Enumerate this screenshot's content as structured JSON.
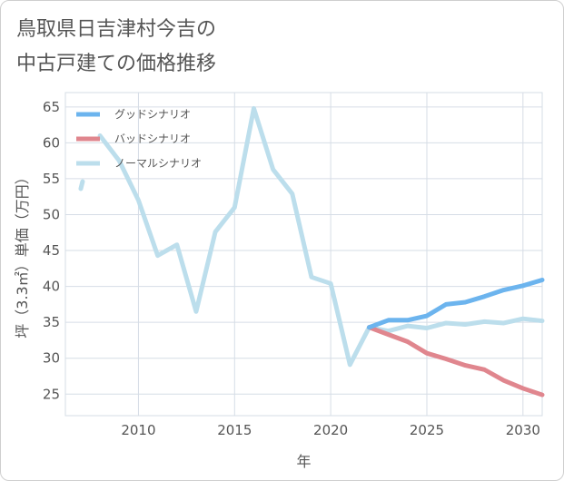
{
  "chart_data": {
    "type": "line",
    "title": "鳥取県日吉津村今吉の\n中古戸建ての価格推移",
    "xlabel": "年",
    "ylabel": "坪（3.3㎡）単価（万円）",
    "xlim": [
      2006.2,
      2031.0
    ],
    "ylim": [
      22,
      67
    ],
    "x_ticks": [
      2010,
      2015,
      2020,
      2025,
      2030
    ],
    "x_tick_labels": [
      "2010",
      "2015",
      "2020",
      "2025",
      "2030"
    ],
    "y_ticks": [
      25,
      30,
      35,
      40,
      45,
      50,
      55,
      60,
      65
    ],
    "y_tick_labels": [
      "25",
      "30",
      "35",
      "40",
      "45",
      "50",
      "55",
      "60",
      "65"
    ],
    "grid": true,
    "legend_position": "top-left",
    "series": [
      {
        "name": "グッドシナリオ",
        "color": "#6cb4ee",
        "x": [
          2022,
          2023,
          2024,
          2025,
          2026,
          2027,
          2028,
          2029,
          2030,
          2031
        ],
        "values": [
          34.3,
          35.3,
          35.3,
          35.9,
          37.5,
          37.8,
          38.6,
          39.5,
          40.1,
          40.9
        ]
      },
      {
        "name": "バッドシナリオ",
        "color": "#e0868e",
        "x": [
          2022,
          2023,
          2024,
          2025,
          2026,
          2027,
          2028,
          2029,
          2030,
          2031
        ],
        "values": [
          34.3,
          33.3,
          32.3,
          30.7,
          29.9,
          29.0,
          28.4,
          26.9,
          25.8,
          24.9
        ]
      },
      {
        "name": "ノーマルシナリオ",
        "color": "#bcdeec",
        "x": [
          2007,
          2008,
          2009,
          2010,
          2011,
          2012,
          2013,
          2014,
          2015,
          2016,
          2017,
          2018,
          2019,
          2020,
          2021,
          2022,
          2023,
          2024,
          2025,
          2026,
          2027,
          2028,
          2029,
          2030,
          2031
        ],
        "values": [
          53.6,
          61.0,
          57.5,
          52.0,
          44.3,
          45.8,
          36.5,
          47.6,
          51.0,
          64.8,
          56.3,
          52.9,
          41.3,
          40.4,
          29.1,
          34.3,
          33.8,
          34.5,
          34.2,
          34.9,
          34.7,
          35.1,
          34.9,
          35.5,
          35.2
        ],
        "gaps_after_x": [
          2007
        ]
      }
    ]
  }
}
